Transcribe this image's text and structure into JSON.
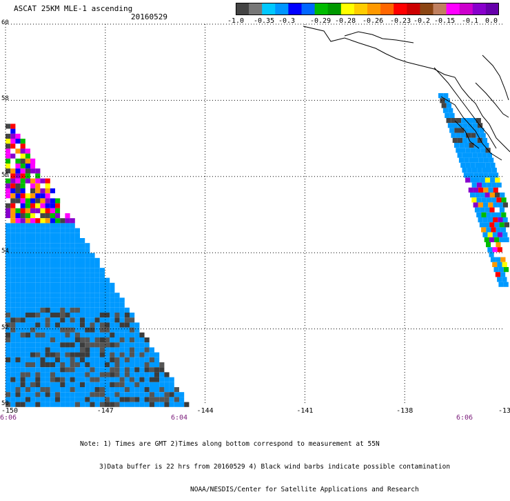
{
  "header": {
    "title": "ASCAT 25KM MLE-1 ascending",
    "date": "20160529"
  },
  "colorbar": {
    "colors": [
      "#444444",
      "#777777",
      "#00c8ff",
      "#0096ff",
      "#0000ff",
      "#0066ff",
      "#00bb00",
      "#009900",
      "#ffff00",
      "#ffcc00",
      "#ff9900",
      "#ff6600",
      "#ff0000",
      "#cc0000",
      "#8b4513",
      "#c08060",
      "#ff00ff",
      "#cc00cc",
      "#8800cc",
      "#6600aa"
    ],
    "labels": [
      "-1.0",
      "-0.35",
      "-0.3",
      "-0.29",
      "-0.28",
      "-0.26",
      "-0.23",
      "-0.2",
      "-0.15",
      "-0.1",
      "0.0"
    ]
  },
  "axes": {
    "lat_labels": [
      "60",
      "58",
      "56",
      "54",
      "52",
      "50"
    ],
    "lon_labels": [
      "-150",
      "-147",
      "-144",
      "-141",
      "-138",
      "-13"
    ],
    "time_labels": [
      "6:06",
      "6:04",
      "6:06"
    ]
  },
  "map": {
    "lon_range": [
      -150,
      -135
    ],
    "lat_range": [
      50,
      60
    ],
    "land_color": "#ffffff",
    "coast_color": "#000000",
    "swath_color": "#0099ff"
  },
  "notes": [
    "Note: 1) Times are GMT 2)Times along bottom correspond to measurement at 55N",
    "3)Data buffer is 22 hrs from 20160529 4) Black wind barbs indicate possible contamination",
    "NOAA/NESDIS/Center for Satellite Applications and Research"
  ]
}
